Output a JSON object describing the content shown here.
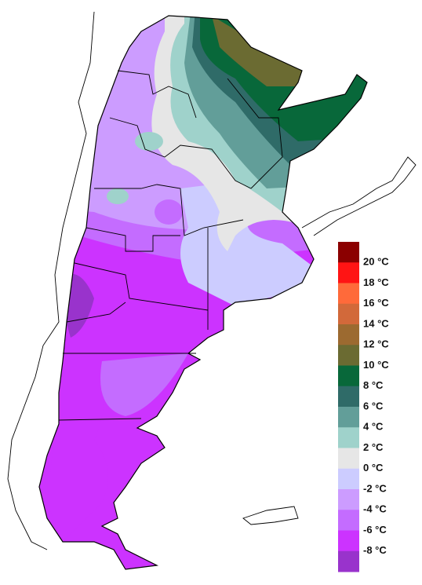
{
  "legend": {
    "colors": [
      "#8b0000",
      "#ff1414",
      "#ff6a3a",
      "#d2693a",
      "#9c6a30",
      "#6b6b32",
      "#08683a",
      "#2f6b68",
      "#629e99",
      "#9fd2cb",
      "#e6e6e6",
      "#ccccff",
      "#cc9cff",
      "#c46cff",
      "#cc33ff",
      "#9933cc"
    ],
    "labels": [
      "20 °C",
      "18 °C",
      "16 °C",
      "14 °C",
      "12 °C",
      "10 °C",
      "8 °C",
      "6 °C",
      "4 °C",
      "2 °C",
      "0 °C",
      "-2 °C",
      "-4 °C",
      "-6 °C",
      "-8 °C"
    ]
  }
}
